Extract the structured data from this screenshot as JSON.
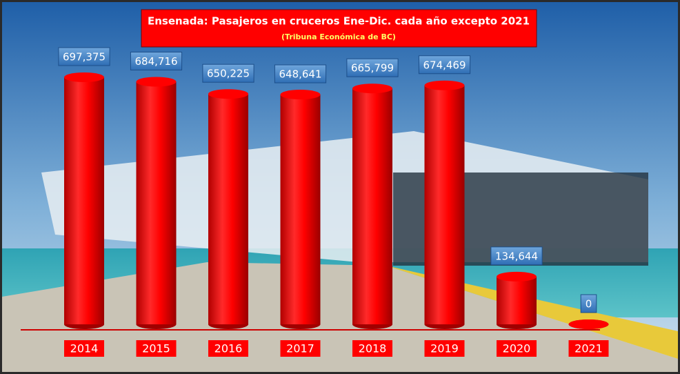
{
  "chart_data": {
    "type": "bar",
    "title": "Ensenada: Pasajeros en cruceros  Ene-Dic. cada año excepto 2021",
    "subtitle": "(Tribuna Económica de BC)",
    "categories": [
      "2014",
      "2015",
      "2016",
      "2017",
      "2018",
      "2019",
      "2020",
      "2021"
    ],
    "values": [
      697375,
      684716,
      650225,
      648641,
      665799,
      674469,
      134644,
      0
    ],
    "value_labels": [
      "697,375",
      "684,716",
      "650,225",
      "648,641",
      "665,799",
      "674,469",
      "134,644",
      "0"
    ],
    "color": "#ff0000"
  }
}
